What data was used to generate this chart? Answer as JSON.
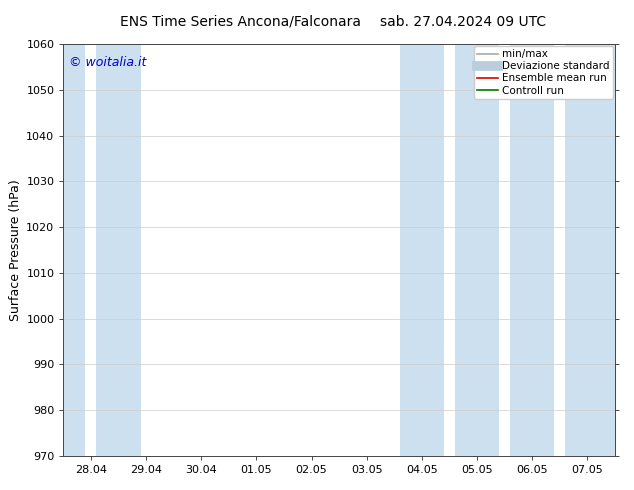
{
  "title_left": "ENS Time Series Ancona/Falconara",
  "title_right": "sab. 27.04.2024 09 UTC",
  "ylabel": "Surface Pressure (hPa)",
  "ylim": [
    970,
    1060
  ],
  "yticks": [
    970,
    980,
    990,
    1000,
    1010,
    1020,
    1030,
    1040,
    1050,
    1060
  ],
  "x_tick_labels": [
    "28.04",
    "29.04",
    "30.04",
    "01.05",
    "02.05",
    "03.05",
    "04.05",
    "05.05",
    "06.05",
    "07.05"
  ],
  "shade_bands": [
    {
      "xmin": 0,
      "xmax": 0.5,
      "color": "#cde0f0"
    },
    {
      "xmin": 1.0,
      "xmax": 1.5,
      "color": "#cde0f0"
    },
    {
      "xmin": 6.0,
      "xmax": 6.5,
      "color": "#cde0f0"
    },
    {
      "xmin": 7.0,
      "xmax": 7.5,
      "color": "#cde0f0"
    },
    {
      "xmin": 8.0,
      "xmax": 8.5,
      "color": "#cde0f0"
    },
    {
      "xmin": 9.0,
      "xmax": 9.5,
      "color": "#cde0f0"
    }
  ],
  "watermark": "© woitalia.it",
  "watermark_color": "#0000cc",
  "legend_items": [
    {
      "label": "min/max",
      "color": "#aaaaaa",
      "lw": 1.2
    },
    {
      "label": "Deviazione standard",
      "color": "#bbccdd",
      "lw": 7
    },
    {
      "label": "Ensemble mean run",
      "color": "#dd0000",
      "lw": 1.2
    },
    {
      "label": "Controll run",
      "color": "#007700",
      "lw": 1.2
    }
  ],
  "bg_color": "#ffffff",
  "shade_color": "#cde0f0",
  "grid_color": "#cccccc",
  "title_fontsize": 10,
  "tick_fontsize": 8,
  "ylabel_fontsize": 9,
  "watermark_fontsize": 9,
  "legend_fontsize": 7.5
}
